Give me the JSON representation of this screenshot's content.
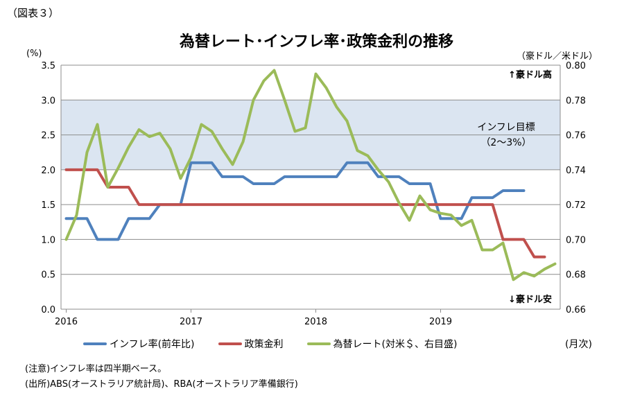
{
  "figure_label": "（図表３）",
  "chart_data": {
    "type": "line",
    "title": "為替レート･インフレ率･政策金利の推移",
    "left_axis": {
      "unit": "(%)",
      "ylim": [
        0.0,
        3.5
      ],
      "ticks": [
        "0.0",
        "0.5",
        "1.0",
        "1.5",
        "2.0",
        "2.5",
        "3.0",
        "3.5"
      ]
    },
    "right_axis": {
      "unit": "（豪ドル／米ドル）",
      "ylim": [
        0.66,
        0.8
      ],
      "ticks": [
        "0.66",
        "0.68",
        "0.70",
        "0.72",
        "0.74",
        "0.76",
        "0.78",
        "0.80"
      ]
    },
    "x_axis": {
      "unit": "(月次)",
      "start_month": "2016-01",
      "month_count": 48,
      "ticks": [
        "2016",
        "2017",
        "2018",
        "2019"
      ]
    },
    "grid": true,
    "band": {
      "range": [
        2.0,
        3.0
      ],
      "label_line1": "インフレ目標",
      "label_line2": "（2～3%）",
      "color": "#dbe5f1"
    },
    "annotations": {
      "high": "↑豪ドル高",
      "low": "↓豪ドル安"
    },
    "series": [
      {
        "name": "インフレ率(前年比)",
        "axis": "left",
        "color": "#4f81bd",
        "x": [
          "2016-01",
          "2016-02",
          "2016-03",
          "2016-04",
          "2016-05",
          "2016-06",
          "2016-07",
          "2016-08",
          "2016-09",
          "2016-10",
          "2016-11",
          "2016-12",
          "2017-01",
          "2017-02",
          "2017-03",
          "2017-04",
          "2017-05",
          "2017-06",
          "2017-07",
          "2017-08",
          "2017-09",
          "2017-10",
          "2017-11",
          "2017-12",
          "2018-01",
          "2018-02",
          "2018-03",
          "2018-04",
          "2018-05",
          "2018-06",
          "2018-07",
          "2018-08",
          "2018-09",
          "2018-10",
          "2018-11",
          "2018-12",
          "2019-01",
          "2019-02",
          "2019-03",
          "2019-04",
          "2019-05",
          "2019-06",
          "2019-07",
          "2019-08",
          "2019-09"
        ],
        "values": [
          1.3,
          1.3,
          1.3,
          1.0,
          1.0,
          1.0,
          1.3,
          1.3,
          1.3,
          1.5,
          1.5,
          1.5,
          2.1,
          2.1,
          2.1,
          1.9,
          1.9,
          1.9,
          1.8,
          1.8,
          1.8,
          1.9,
          1.9,
          1.9,
          1.9,
          1.9,
          1.9,
          2.1,
          2.1,
          2.1,
          1.9,
          1.9,
          1.9,
          1.8,
          1.8,
          1.8,
          1.3,
          1.3,
          1.3,
          1.6,
          1.6,
          1.6,
          1.7,
          1.7,
          1.7
        ]
      },
      {
        "name": "政策金利",
        "axis": "left",
        "color": "#c0504d",
        "x": [
          "2016-01",
          "2016-02",
          "2016-03",
          "2016-04",
          "2016-05",
          "2016-06",
          "2016-07",
          "2016-08",
          "2016-09",
          "2016-10",
          "2016-11",
          "2016-12",
          "2017-01",
          "2017-02",
          "2017-03",
          "2017-04",
          "2017-05",
          "2017-06",
          "2017-07",
          "2017-08",
          "2017-09",
          "2017-10",
          "2017-11",
          "2017-12",
          "2018-01",
          "2018-02",
          "2018-03",
          "2018-04",
          "2018-05",
          "2018-06",
          "2018-07",
          "2018-08",
          "2018-09",
          "2018-10",
          "2018-11",
          "2018-12",
          "2019-01",
          "2019-02",
          "2019-03",
          "2019-04",
          "2019-05",
          "2019-06",
          "2019-07",
          "2019-08",
          "2019-09",
          "2019-10",
          "2019-11"
        ],
        "values": [
          2.0,
          2.0,
          2.0,
          2.0,
          1.75,
          1.75,
          1.75,
          1.5,
          1.5,
          1.5,
          1.5,
          1.5,
          1.5,
          1.5,
          1.5,
          1.5,
          1.5,
          1.5,
          1.5,
          1.5,
          1.5,
          1.5,
          1.5,
          1.5,
          1.5,
          1.5,
          1.5,
          1.5,
          1.5,
          1.5,
          1.5,
          1.5,
          1.5,
          1.5,
          1.5,
          1.5,
          1.5,
          1.5,
          1.5,
          1.5,
          1.5,
          1.5,
          1.0,
          1.0,
          1.0,
          0.75,
          0.75
        ]
      },
      {
        "name": "為替レート(対米＄、右目盛)",
        "axis": "right",
        "color": "#9bbb59",
        "x": [
          "2016-01",
          "2016-02",
          "2016-03",
          "2016-04",
          "2016-05",
          "2016-06",
          "2016-07",
          "2016-08",
          "2016-09",
          "2016-10",
          "2016-11",
          "2016-12",
          "2017-01",
          "2017-02",
          "2017-03",
          "2017-04",
          "2017-05",
          "2017-06",
          "2017-07",
          "2017-08",
          "2017-09",
          "2017-10",
          "2017-11",
          "2017-12",
          "2018-01",
          "2018-02",
          "2018-03",
          "2018-04",
          "2018-05",
          "2018-06",
          "2018-07",
          "2018-08",
          "2018-09",
          "2018-10",
          "2018-11",
          "2018-12",
          "2019-01",
          "2019-02",
          "2019-03",
          "2019-04",
          "2019-05",
          "2019-06",
          "2019-07",
          "2019-08",
          "2019-09",
          "2019-10",
          "2019-11",
          "2019-12"
        ],
        "values": [
          0.7,
          0.714,
          0.75,
          0.766,
          0.73,
          0.741,
          0.753,
          0.763,
          0.759,
          0.761,
          0.752,
          0.735,
          0.747,
          0.766,
          0.762,
          0.752,
          0.743,
          0.756,
          0.78,
          0.791,
          0.797,
          0.78,
          0.762,
          0.764,
          0.795,
          0.787,
          0.776,
          0.768,
          0.751,
          0.748,
          0.74,
          0.733,
          0.721,
          0.711,
          0.725,
          0.717,
          0.715,
          0.714,
          0.708,
          0.711,
          0.694,
          0.694,
          0.698,
          0.677,
          0.681,
          0.679,
          0.683,
          0.686
        ]
      }
    ]
  },
  "legend": {
    "month_unit": "(月次)"
  },
  "notes": [
    "(注意)インフレ率は四半期ベース。",
    "(出所)ABS(オーストラリア統計局)、RBA(オーストラリア準備銀行)"
  ]
}
